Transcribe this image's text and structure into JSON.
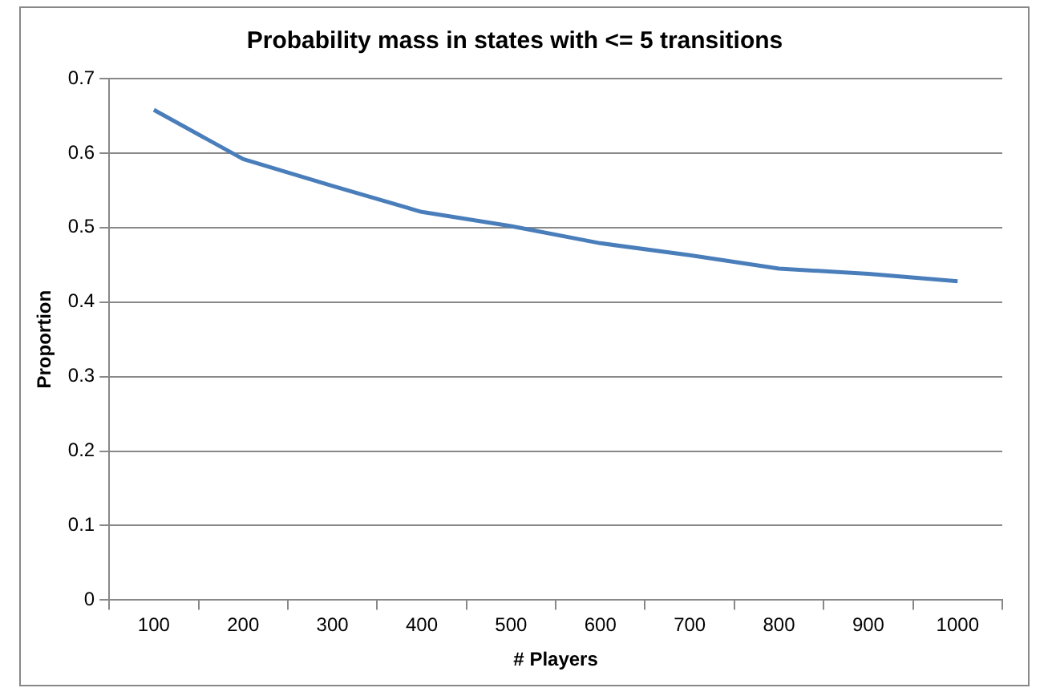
{
  "chart_data": {
    "type": "line",
    "title": "Probability mass in states with <= 5 transitions",
    "xlabel": "# Players",
    "ylabel": "Proportion",
    "categories": [
      "100",
      "200",
      "300",
      "400",
      "500",
      "600",
      "700",
      "800",
      "900",
      "1000"
    ],
    "series": [
      {
        "color": "#4a7ebb",
        "values": [
          0.658,
          0.592,
          0.556,
          0.521,
          0.502,
          0.479,
          0.463,
          0.445,
          0.438,
          0.428
        ]
      }
    ],
    "ylim": [
      0,
      0.7
    ],
    "yticks": [
      0,
      0.1,
      0.2,
      0.3,
      0.4,
      0.5,
      0.6,
      0.7
    ],
    "grid": "y",
    "legend": false,
    "marker": "none",
    "line_style": "solid"
  }
}
